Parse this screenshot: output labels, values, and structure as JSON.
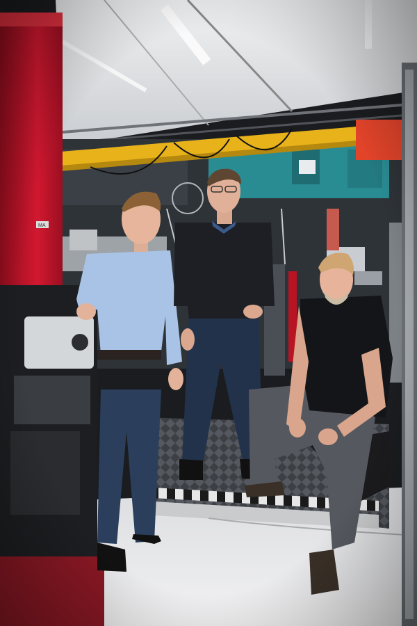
{
  "scene": {
    "description_colors": {
      "ceiling": "#d9dbde",
      "yellow_beam": "#e8b21a",
      "red_column": "#c8142a",
      "teal_cabinet": "#2a8c93",
      "floor": "#e8e9ea",
      "shirt_blue": "#a9c3e6",
      "jeans": "#2b3f5c",
      "sweater": "#1d1f24",
      "black_tshirt": "#141518",
      "grey_trousers": "#55595f"
    },
    "labels": {
      "equipment_tag": "MA"
    }
  }
}
